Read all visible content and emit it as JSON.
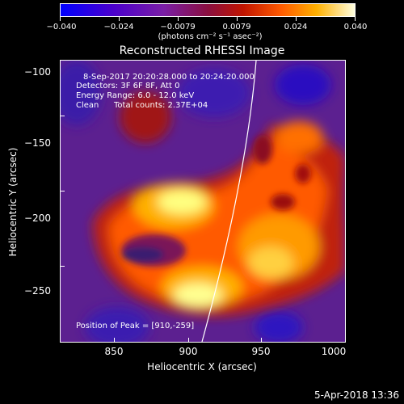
{
  "colorbar": {
    "tick_labels": [
      "−0.040",
      "−0.024",
      "−0.0079",
      "0.0079",
      "0.024",
      "0.040"
    ],
    "units": "(photons cm⁻² s⁻¹ asec⁻²)"
  },
  "title": "Reconstructed RHESSI Image",
  "axes": {
    "ylabel": "Heliocentric Y (arcsec)",
    "xlabel": "Heliocentric X (arcsec)",
    "ytick_labels": [
      "−100",
      "−150",
      "−200",
      "−250"
    ],
    "xtick_labels": [
      "850",
      "900",
      "950",
      "1000"
    ]
  },
  "info": {
    "time": "8-Sep-2017 20:20:28.000 to 20:24:20.000",
    "detectors": "Detectors: 3F 6F 8F, Att 0",
    "energy": "Energy Range: 6.0 - 12.0 keV",
    "method": "Clean",
    "counts": "Total counts: 2.37E+04",
    "peak": "Position of Peak = [910,-259]"
  },
  "footer": {
    "date": "5-Apr-2018 13:36"
  },
  "colors": {
    "background": "#000000",
    "text": "#ffffff",
    "limb": "#ffffff"
  },
  "chart_data": {
    "type": "heatmap",
    "title": "Reconstructed RHESSI Image",
    "xlabel": "Heliocentric X (arcsec)",
    "ylabel": "Heliocentric Y (arcsec)",
    "xlim": [
      813,
      1004
    ],
    "ylim": [
      -285,
      -94
    ],
    "color_range": [
      -0.04,
      0.04
    ],
    "peak": [
      910,
      -259
    ]
  }
}
